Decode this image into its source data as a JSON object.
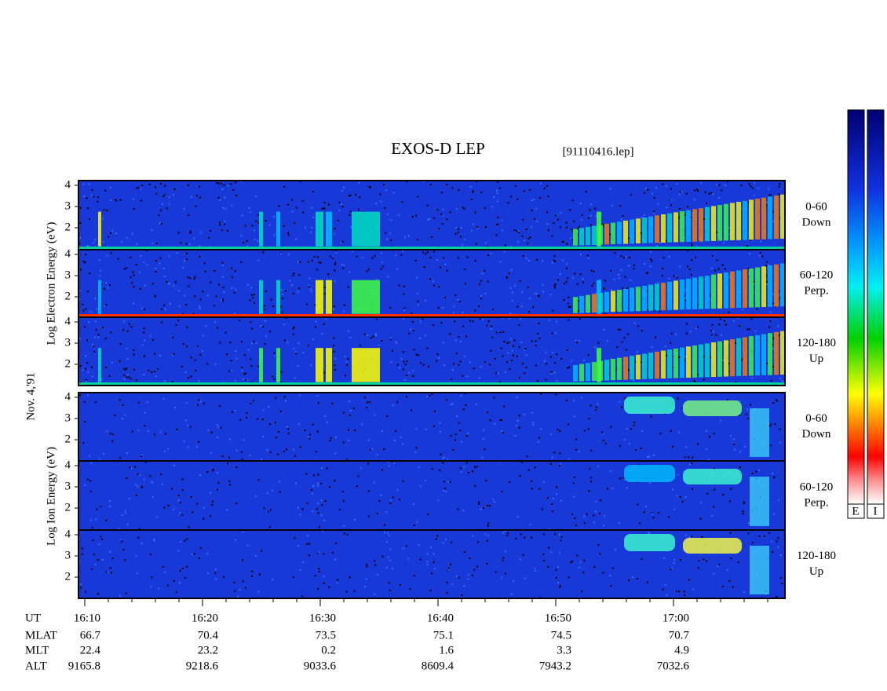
{
  "title": "EXOS-D LEP",
  "file": "[91110416.lep]",
  "date": "Nov. 4,'91",
  "electron_label": "Log Electron Energy (eV)",
  "ion_label": "Log Ion Energy (eV)",
  "yticks": [
    4,
    3,
    2
  ],
  "panels": [
    {
      "range": "0-60",
      "dir": "Down"
    },
    {
      "range": "60-120",
      "dir": "Perp."
    },
    {
      "range": "120-180",
      "dir": "Up"
    },
    {
      "range": "0-60",
      "dir": "Down"
    },
    {
      "range": "60-120",
      "dir": "Perp."
    },
    {
      "range": "120-180",
      "dir": "Up"
    }
  ],
  "ephemeris": {
    "rows": [
      {
        "label": "UT",
        "values": [
          "16:10",
          "16:20",
          "16:30",
          "16:40",
          "16:50",
          "17:00"
        ]
      },
      {
        "label": "MLAT",
        "values": [
          "66.7",
          "70.4",
          "73.5",
          "75.1",
          "74.5",
          "70.7"
        ]
      },
      {
        "label": "MLT",
        "values": [
          "22.4",
          "23.2",
          "0.2",
          "1.6",
          "3.3",
          "4.9"
        ]
      },
      {
        "label": "ALT",
        "values": [
          "9165.8",
          "9218.6",
          "9033.6",
          "8609.4",
          "7943.2",
          "7032.6"
        ]
      }
    ]
  },
  "colorbars": [
    "E",
    "I"
  ]
}
